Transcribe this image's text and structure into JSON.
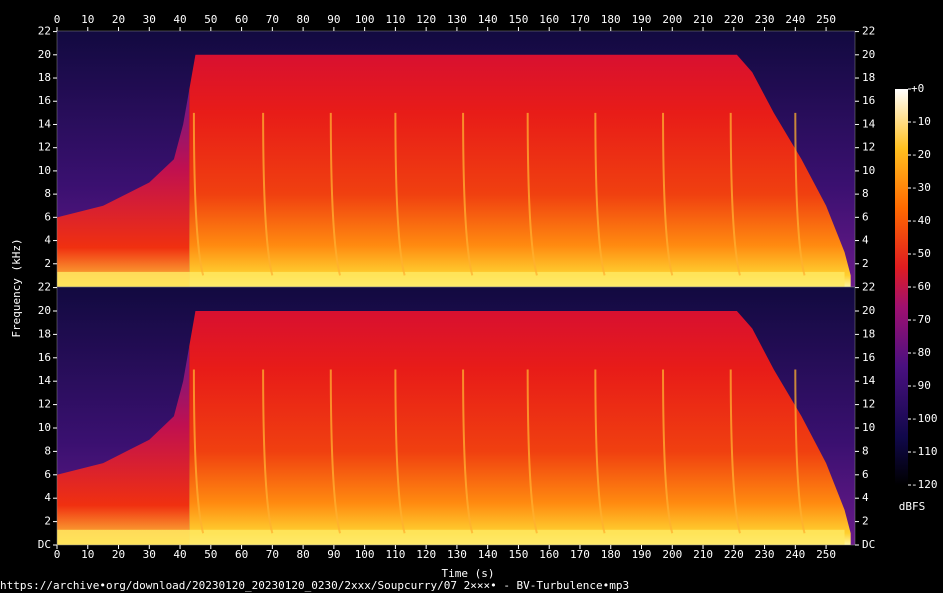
{
  "chart_data": {
    "type": "spectrogram",
    "xlabel": "Time (s)",
    "ylabel": "Frequency (kHz)",
    "xlim": [
      0,
      259.4
    ],
    "xticks": [
      0,
      10,
      20,
      30,
      40,
      50,
      60,
      70,
      80,
      90,
      100,
      110,
      120,
      130,
      140,
      150,
      160,
      170,
      180,
      190,
      200,
      210,
      220,
      230,
      240,
      250
    ],
    "panels": [
      {
        "ylim": [
          0,
          22.05
        ],
        "yticks": [
          2,
          4,
          6,
          8,
          10,
          12,
          14,
          16,
          18,
          20,
          22
        ]
      },
      {
        "ylim": [
          0,
          22.05
        ],
        "yticks": [
          {
            "value": 0,
            "label": "DC"
          },
          2,
          4,
          6,
          8,
          10,
          12,
          14,
          16,
          18,
          20,
          22
        ]
      }
    ],
    "colorbar": {
      "label": "dBFS",
      "lim": [
        -120,
        0
      ],
      "ticks": [
        {
          "value": 0,
          "label": "+0"
        },
        -10,
        -20,
        -30,
        -40,
        -50,
        -60,
        -70,
        -80,
        -90,
        -100,
        -110,
        -120
      ]
    },
    "footer": "https://archive•org/download/20230120_20230120_0230/2xxx/Soupcurry/07 2×××• - BV-Turbulence•mp3"
  }
}
